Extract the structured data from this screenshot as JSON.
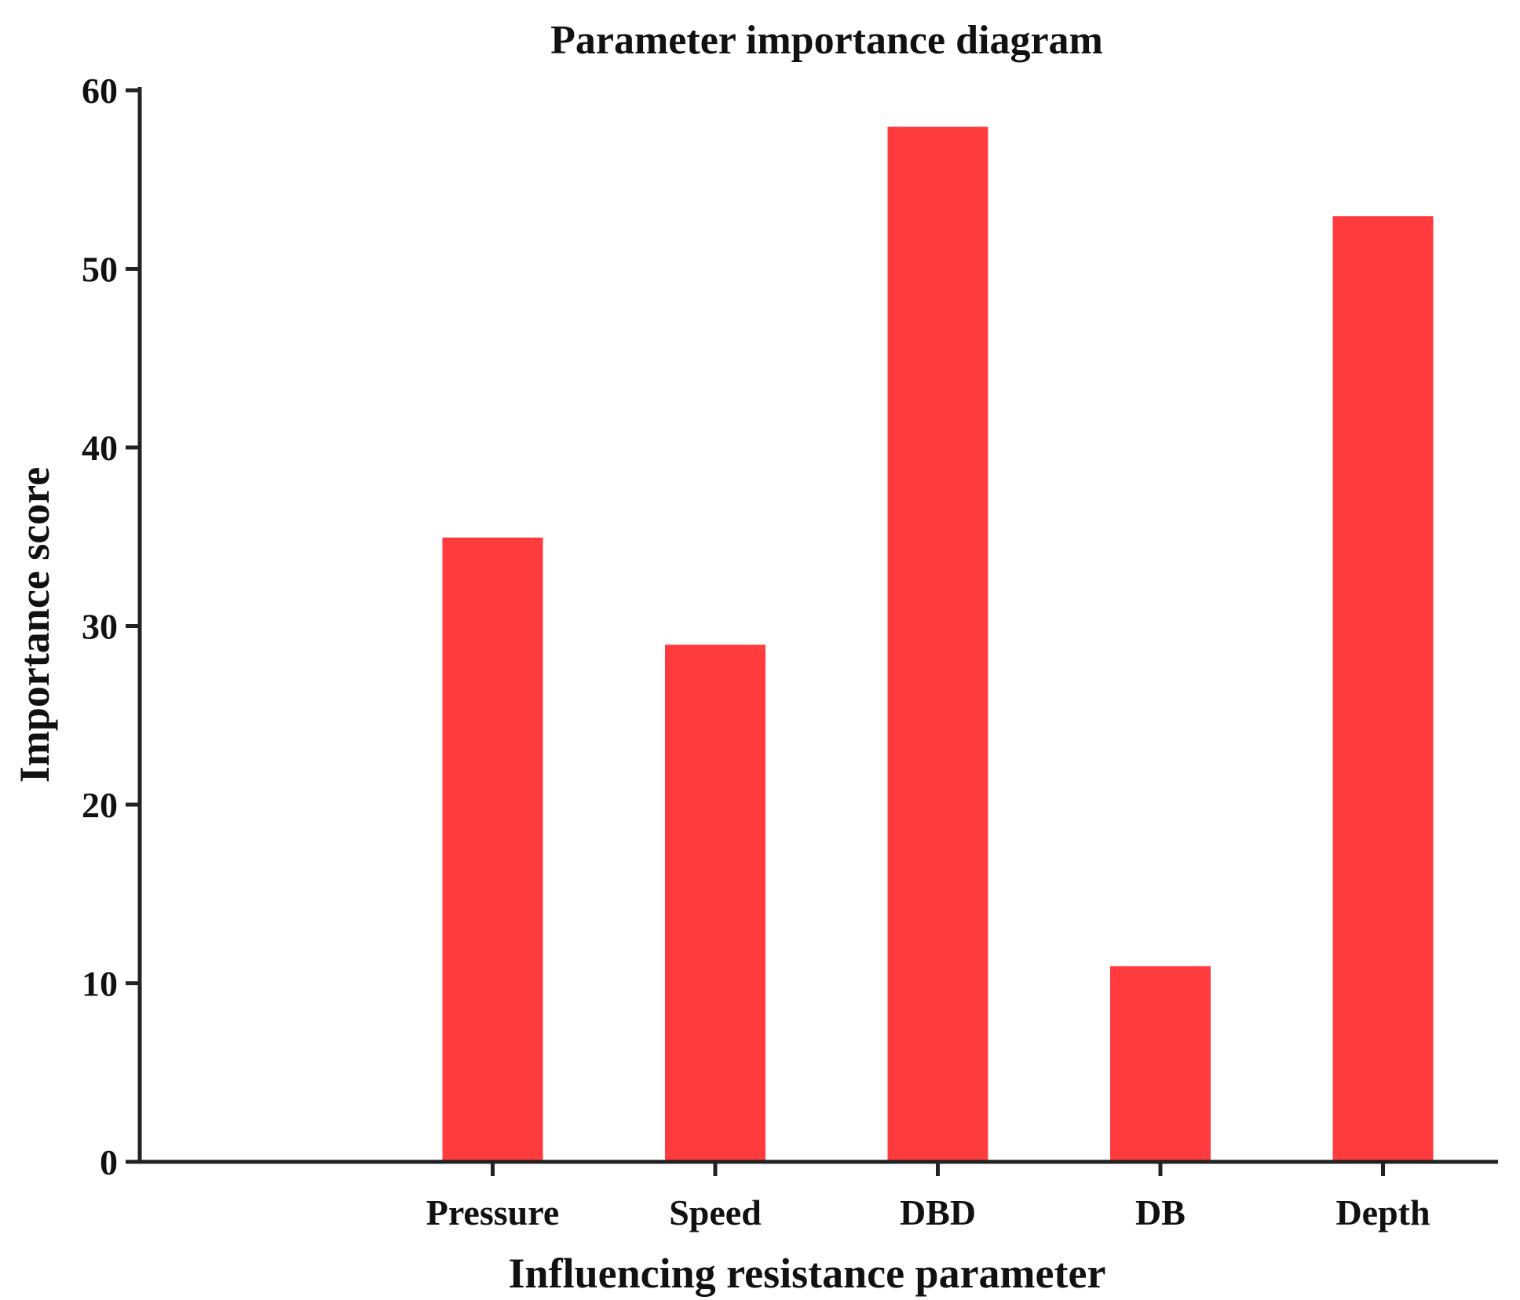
{
  "chart_data": {
    "type": "bar",
    "title": "Parameter importance diagram",
    "xlabel": "Influencing resistance parameter",
    "ylabel": "Importance score",
    "categories": [
      "Pressure",
      "Speed",
      "DBD",
      "DB",
      "Depth"
    ],
    "values": [
      35,
      29,
      58,
      11,
      53
    ],
    "ylim": [
      0,
      60
    ],
    "yticks": [
      "0",
      "10",
      "20",
      "30",
      "40",
      "50",
      "60"
    ],
    "grid": false,
    "legend": "none",
    "bar_color": "#ff3b3d",
    "axis_color": "#222222"
  }
}
